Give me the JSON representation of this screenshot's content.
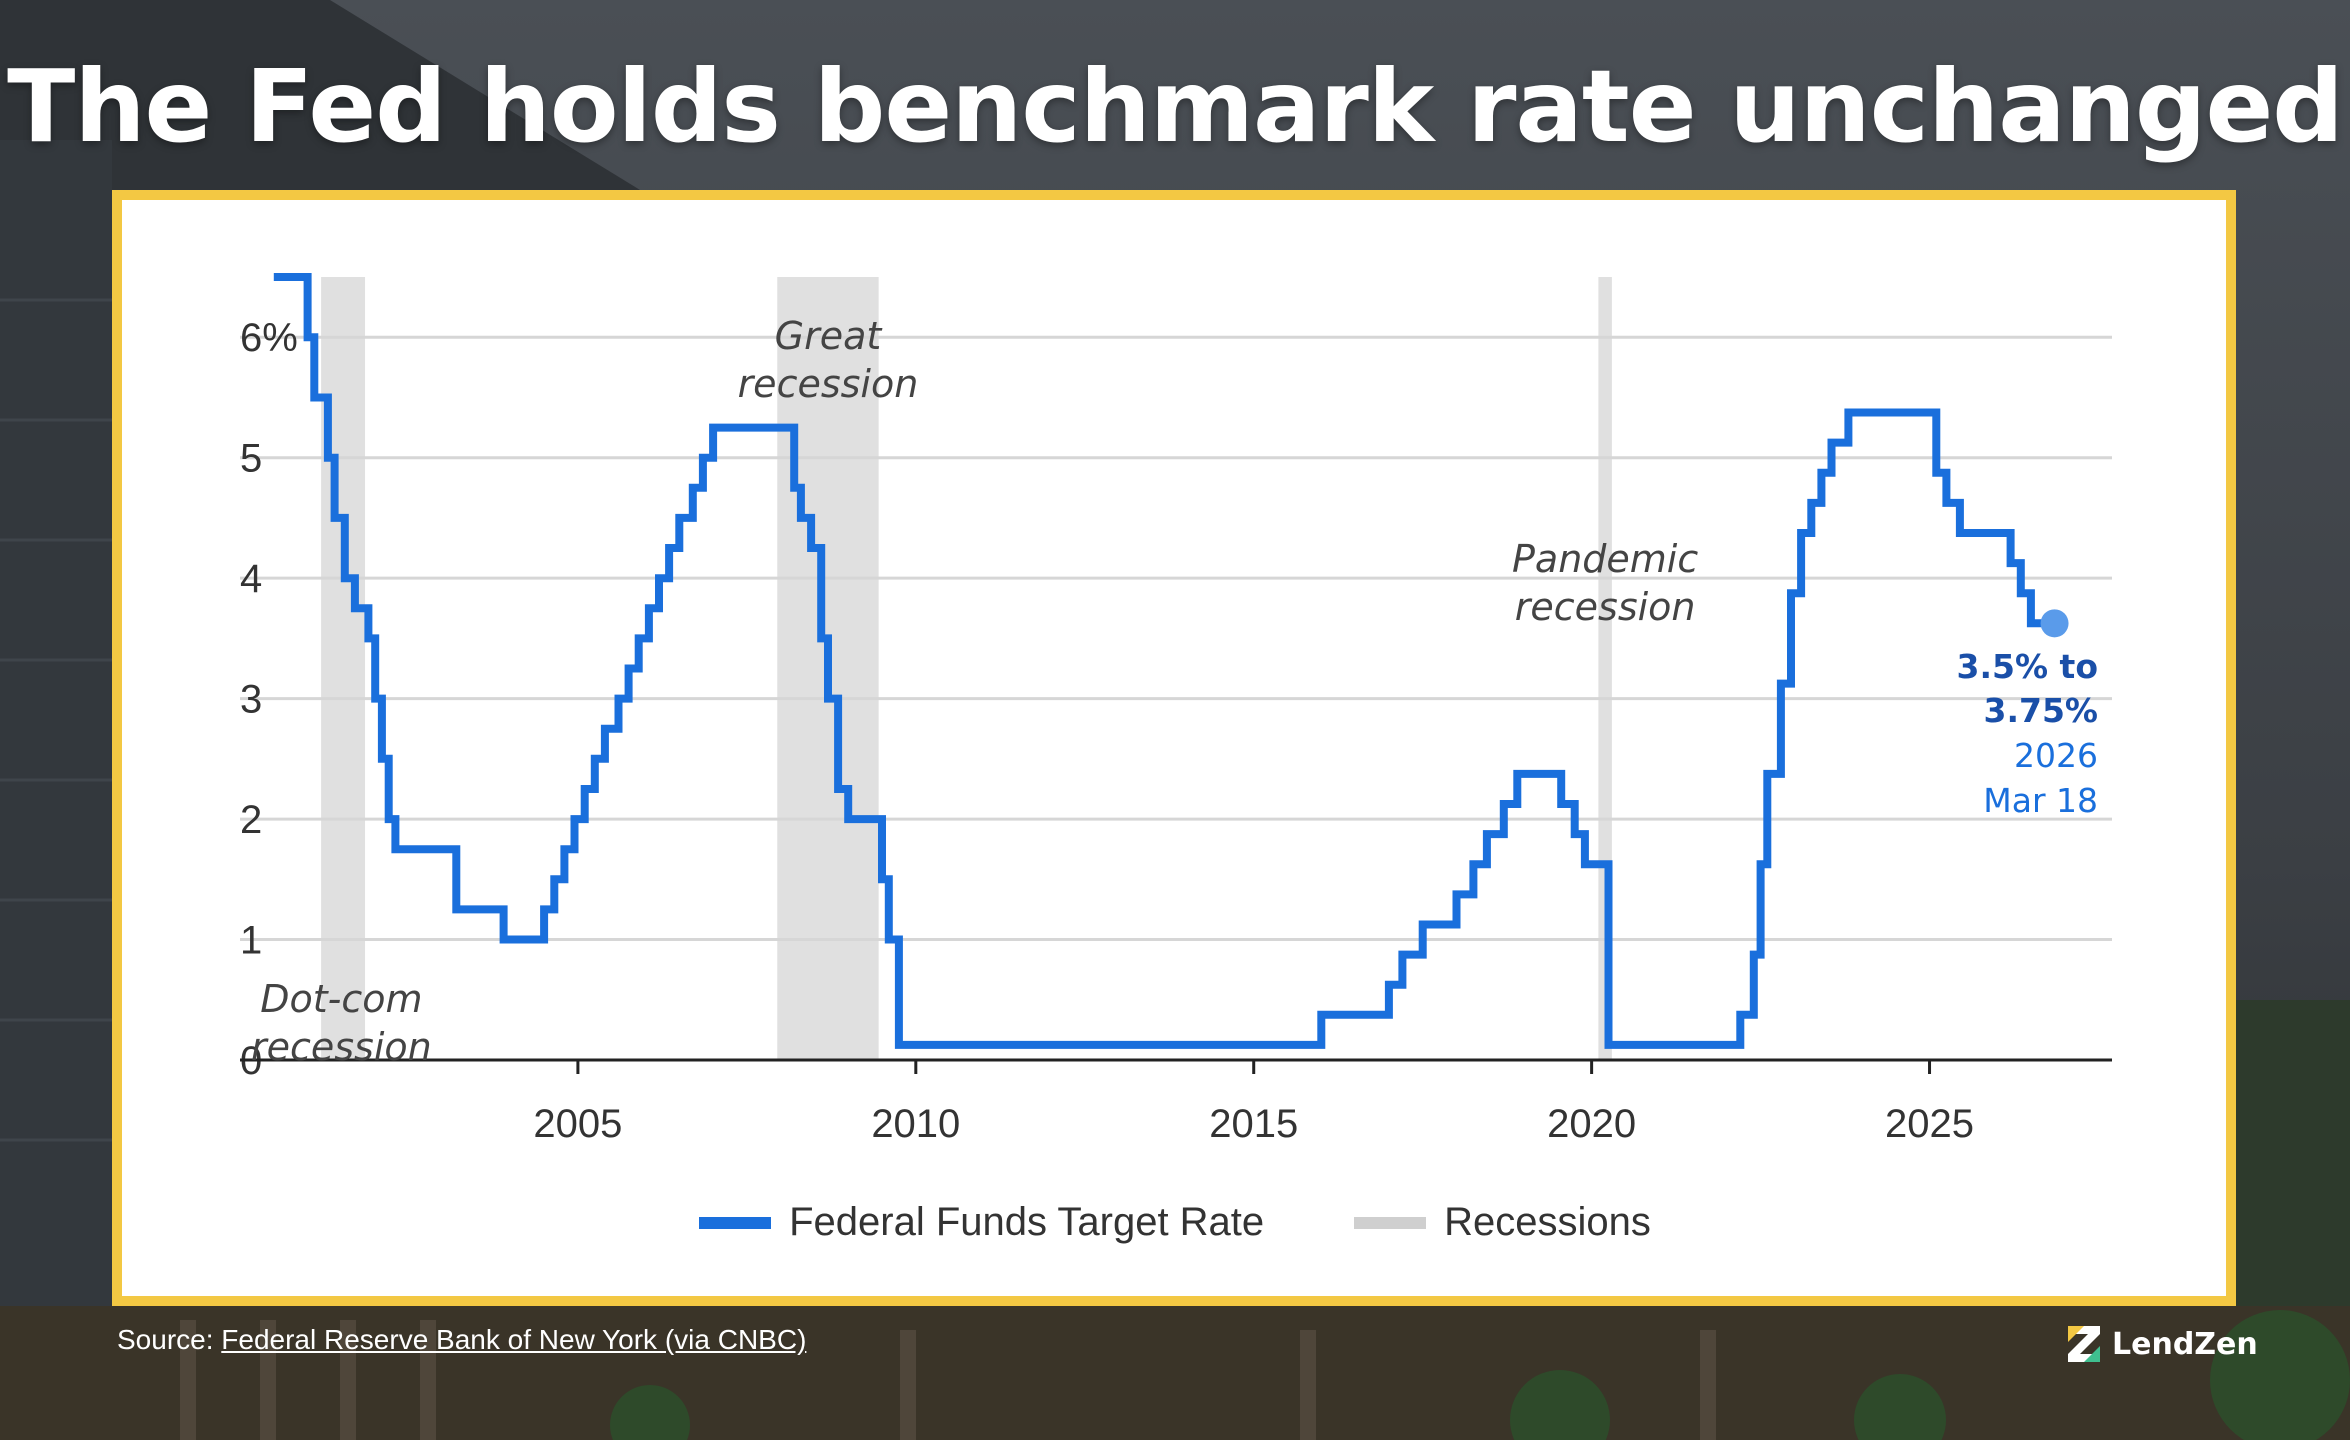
{
  "headline": "The Fed holds benchmark rate unchanged",
  "colors": {
    "line": "#1a6fdc",
    "recession": "#e0e0e0",
    "grid": "#d6d6d6",
    "axis": "#222222",
    "card_border": "#f3c843",
    "callout_bold": "#1a4fa8",
    "callout": "#1a6fdc"
  },
  "source": {
    "prefix": "Source: ",
    "link_text": "Federal Reserve Bank of New York (via CNBC)"
  },
  "brand": {
    "name": "LendZen",
    "logo_icon": "lendzen-z-icon"
  },
  "callout": {
    "line1": "3.5% to",
    "line2": "3.75%",
    "line3": "2026",
    "line4": "Mar 18"
  },
  "chart_data": {
    "type": "line",
    "title": "The Fed holds benchmark rate unchanged",
    "xlabel": "",
    "ylabel": "",
    "xlim": [
      2000,
      2027.7
    ],
    "ylim": [
      0,
      6.5
    ],
    "x_ticks": [
      2005,
      2010,
      2015,
      2020,
      2025
    ],
    "x_tick_labels": [
      "2005",
      "2010",
      "2015",
      "2020",
      "2025"
    ],
    "y_ticks": [
      0,
      1,
      2,
      3,
      4,
      5,
      6
    ],
    "y_tick_labels": [
      "0",
      "1",
      "2",
      "3",
      "4",
      "5",
      "6%"
    ],
    "grid": true,
    "legend": [
      "Federal Funds Target Rate",
      "Recessions"
    ],
    "legend_position": "bottom-center",
    "series": [
      {
        "name": "Federal Funds Target Rate",
        "step": true,
        "points": [
          [
            2000.5,
            6.5
          ],
          [
            2001.0,
            6.0
          ],
          [
            2001.1,
            5.5
          ],
          [
            2001.3,
            5.0
          ],
          [
            2001.4,
            4.5
          ],
          [
            2001.55,
            4.0
          ],
          [
            2001.7,
            3.75
          ],
          [
            2001.9,
            3.5
          ],
          [
            2002.0,
            3.0
          ],
          [
            2002.1,
            2.5
          ],
          [
            2002.2,
            2.0
          ],
          [
            2002.3,
            1.75
          ],
          [
            2003.2,
            1.25
          ],
          [
            2003.9,
            1.0
          ],
          [
            2004.5,
            1.25
          ],
          [
            2004.65,
            1.5
          ],
          [
            2004.8,
            1.75
          ],
          [
            2004.95,
            2.0
          ],
          [
            2005.1,
            2.25
          ],
          [
            2005.25,
            2.5
          ],
          [
            2005.4,
            2.75
          ],
          [
            2005.6,
            3.0
          ],
          [
            2005.75,
            3.25
          ],
          [
            2005.9,
            3.5
          ],
          [
            2006.05,
            3.75
          ],
          [
            2006.2,
            4.0
          ],
          [
            2006.35,
            4.25
          ],
          [
            2006.5,
            4.5
          ],
          [
            2006.7,
            4.75
          ],
          [
            2006.85,
            5.0
          ],
          [
            2007.0,
            5.25
          ],
          [
            2008.2,
            4.75
          ],
          [
            2008.3,
            4.5
          ],
          [
            2008.45,
            4.25
          ],
          [
            2008.6,
            3.5
          ],
          [
            2008.7,
            3.0
          ],
          [
            2008.85,
            2.25
          ],
          [
            2009.0,
            2.0
          ],
          [
            2009.5,
            1.5
          ],
          [
            2009.6,
            1.0
          ],
          [
            2009.75,
            0.125
          ],
          [
            2016.0,
            0.375
          ],
          [
            2017.0,
            0.625
          ],
          [
            2017.2,
            0.875
          ],
          [
            2017.5,
            1.125
          ],
          [
            2018.0,
            1.375
          ],
          [
            2018.25,
            1.625
          ],
          [
            2018.45,
            1.875
          ],
          [
            2018.7,
            2.125
          ],
          [
            2018.9,
            2.375
          ],
          [
            2019.55,
            2.125
          ],
          [
            2019.75,
            1.875
          ],
          [
            2019.9,
            1.625
          ],
          [
            2020.25,
            0.125
          ],
          [
            2022.2,
            0.375
          ],
          [
            2022.4,
            0.875
          ],
          [
            2022.5,
            1.625
          ],
          [
            2022.6,
            2.375
          ],
          [
            2022.8,
            3.125
          ],
          [
            2022.95,
            3.875
          ],
          [
            2023.1,
            4.375
          ],
          [
            2023.25,
            4.625
          ],
          [
            2023.4,
            4.875
          ],
          [
            2023.55,
            5.125
          ],
          [
            2023.8,
            5.375
          ],
          [
            2025.1,
            4.875
          ],
          [
            2025.25,
            4.625
          ],
          [
            2025.45,
            4.375
          ],
          [
            2026.2,
            4.125
          ],
          [
            2026.35,
            3.875
          ],
          [
            2026.5,
            3.625
          ],
          [
            2026.85,
            3.625
          ]
        ]
      }
    ],
    "recessions": [
      {
        "start": 2001.2,
        "end": 2001.85
      },
      {
        "start": 2007.95,
        "end": 2009.45
      },
      {
        "start": 2020.1,
        "end": 2020.3
      }
    ],
    "annotations": [
      {
        "name": "dot-com",
        "line1": "Dot-com",
        "line2": "recession",
        "x": 2001.5,
        "y": 0.5
      },
      {
        "name": "great",
        "line1": "Great",
        "line2": "recession",
        "x": 2008.7,
        "y": 6.0
      },
      {
        "name": "pandemic",
        "line1": "Pandemic",
        "line2": "recession",
        "x": 2020.2,
        "y": 4.15
      }
    ],
    "end_marker": {
      "x": 2026.85,
      "y": 3.625
    }
  }
}
